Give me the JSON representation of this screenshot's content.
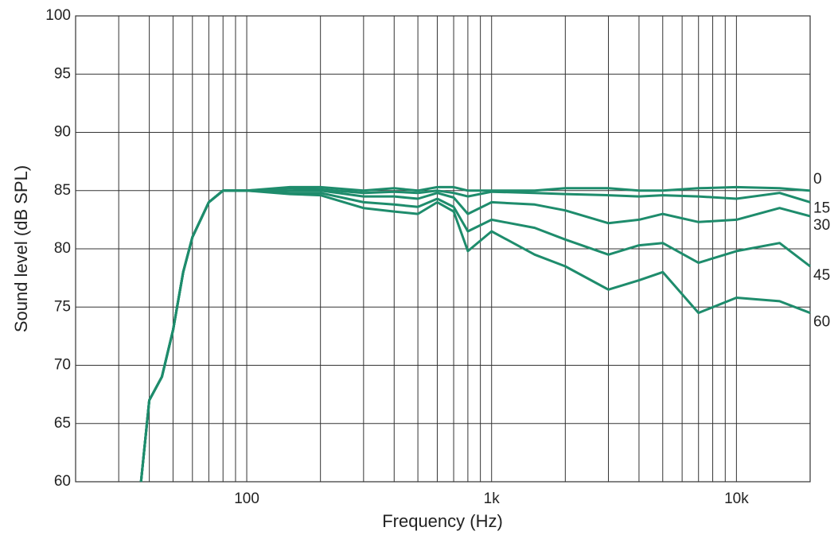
{
  "chart_data": {
    "type": "line",
    "xlabel": "Frequency (Hz)",
    "ylabel": "Sound level (dB SPL)",
    "xscale": "log",
    "grid": true,
    "xlim": [
      20,
      20000
    ],
    "ylim": [
      60,
      100
    ],
    "xticks": [
      {
        "value": 100,
        "label": "100"
      },
      {
        "value": 1000,
        "label": "1k"
      },
      {
        "value": 10000,
        "label": "10k"
      }
    ],
    "xminorticks": [
      30,
      40,
      50,
      60,
      70,
      80,
      90,
      200,
      300,
      400,
      500,
      600,
      700,
      800,
      900,
      2000,
      3000,
      4000,
      5000,
      6000,
      7000,
      8000,
      9000
    ],
    "yticks": [
      60,
      65,
      70,
      75,
      80,
      85,
      90,
      95,
      100
    ],
    "x": [
      37,
      40,
      45,
      50,
      55,
      60,
      70,
      80,
      100,
      150,
      200,
      300,
      400,
      500,
      600,
      700,
      800,
      1000,
      1500,
      2000,
      3000,
      4000,
      5000,
      7000,
      10000,
      15000,
      20000
    ],
    "series": [
      {
        "name": "0",
        "color": "#1e8c6c",
        "values": [
          60,
          67,
          69,
          73,
          78,
          81,
          84,
          85,
          85,
          85.3,
          85.3,
          85,
          85.2,
          85,
          85.3,
          85.3,
          85,
          85,
          85,
          85.2,
          85.2,
          85,
          85,
          85.2,
          85.3,
          85.2,
          85
        ]
      },
      {
        "name": "15",
        "color": "#1e8c6c",
        "values": [
          60,
          67,
          69,
          73,
          78,
          81,
          84,
          85,
          85,
          85.2,
          85.1,
          84.8,
          84.9,
          84.8,
          85,
          84.8,
          84.5,
          84.9,
          84.8,
          84.7,
          84.6,
          84.5,
          84.6,
          84.5,
          84.3,
          84.8,
          84
        ]
      },
      {
        "name": "30",
        "color": "#1e8c6c",
        "values": [
          60,
          67,
          69,
          73,
          78,
          81,
          84,
          85,
          85,
          85,
          85,
          84.5,
          84.5,
          84.3,
          84.8,
          84.4,
          83,
          84,
          83.8,
          83.3,
          82.2,
          82.5,
          83,
          82.3,
          82.5,
          83.5,
          82.8
        ]
      },
      {
        "name": "45",
        "color": "#1e8c6c",
        "values": [
          60,
          67,
          69,
          73,
          78,
          81,
          84,
          85,
          85,
          84.8,
          84.8,
          84,
          83.8,
          83.6,
          84.3,
          83.6,
          81.5,
          82.5,
          81.8,
          80.8,
          79.5,
          80.3,
          80.5,
          78.8,
          79.8,
          80.5,
          78.5
        ]
      },
      {
        "name": "60",
        "color": "#1e8c6c",
        "values": [
          60,
          67,
          69,
          73,
          78,
          81,
          84,
          85,
          85,
          84.7,
          84.6,
          83.5,
          83.2,
          83,
          84,
          83.2,
          79.8,
          81.5,
          79.5,
          78.5,
          76.5,
          77.3,
          78,
          74.5,
          75.8,
          75.5,
          74.5
        ]
      }
    ]
  }
}
